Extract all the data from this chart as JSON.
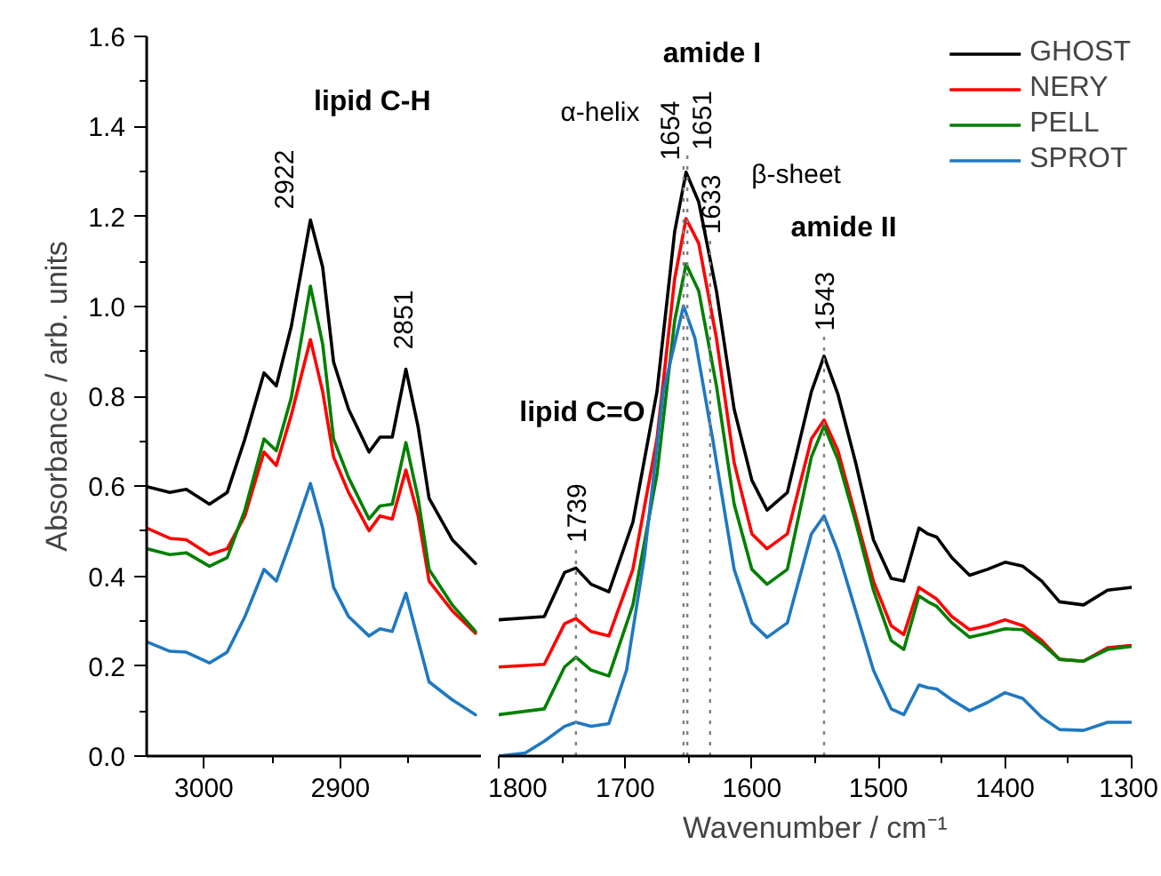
{
  "chart_data": [
    {
      "type": "line",
      "ylabel": "Absorbance / arb. units",
      "xlim": [
        3042,
        2797
      ],
      "ylim": [
        0,
        1.6
      ],
      "xticks": [
        3000,
        2900,
        {
          "value": 2950,
          "label": null
        },
        {
          "value": 2850,
          "label": null
        }
      ],
      "yticks": [
        {
          "value": 0,
          "label": "0.0"
        },
        0.2,
        0.4,
        0.6,
        0.8,
        {
          "value": 1,
          "label": "1.0"
        },
        1.2,
        1.4,
        1.6,
        {
          "value": 0.1,
          "label": null
        },
        {
          "value": 0.3,
          "label": null
        },
        {
          "value": 0.5,
          "label": null
        },
        {
          "value": 0.7,
          "label": null
        },
        {
          "value": 0.9,
          "label": null
        },
        {
          "value": 1.1,
          "label": null
        },
        {
          "value": 1.3,
          "label": null
        },
        {
          "value": 1.5,
          "label": null
        }
      ],
      "x": [
        3042,
        3025,
        3013,
        2996,
        2983,
        2970,
        2956,
        2947,
        2936,
        2922,
        2913,
        2905,
        2894,
        2879,
        2871,
        2862,
        2852,
        2843,
        2835,
        2818,
        2801
      ],
      "series": [
        {
          "color": "#000000",
          "values": [
            0.599,
            0.586,
            0.593,
            0.56,
            0.586,
            0.705,
            0.852,
            0.823,
            0.955,
            1.192,
            1.087,
            0.876,
            0.771,
            0.676,
            0.709,
            0.709,
            0.86,
            0.731,
            0.573,
            0.481,
            0.428
          ]
        },
        {
          "color": "#ff0000",
          "values": [
            0.507,
            0.484,
            0.481,
            0.448,
            0.461,
            0.534,
            0.676,
            0.646,
            0.758,
            0.926,
            0.81,
            0.665,
            0.586,
            0.501,
            0.534,
            0.527,
            0.636,
            0.534,
            0.389,
            0.323,
            0.273
          ]
        },
        {
          "color": "#008000",
          "values": [
            0.461,
            0.448,
            0.452,
            0.422,
            0.441,
            0.547,
            0.705,
            0.679,
            0.797,
            1.045,
            0.916,
            0.705,
            0.619,
            0.527,
            0.556,
            0.56,
            0.697,
            0.573,
            0.415,
            0.336,
            0.277
          ]
        },
        {
          "color": "#1f78c1",
          "values": [
            0.254,
            0.233,
            0.231,
            0.207,
            0.231,
            0.31,
            0.415,
            0.389,
            0.481,
            0.606,
            0.507,
            0.375,
            0.31,
            0.267,
            0.283,
            0.277,
            0.362,
            0.257,
            0.165,
            0.125,
            0.092
          ]
        }
      ],
      "annotations": [
        "lipid C-H",
        "2922",
        "2851"
      ]
    },
    {
      "type": "line",
      "xlabel": "Wavenumber / cm⁻¹",
      "xlim": [
        1800,
        1300
      ],
      "ylim": [
        0,
        1.6
      ],
      "tick_labels": "x",
      "legend": "top right",
      "xticks": [
        1800,
        1700,
        1600,
        1500,
        1400,
        1300,
        {
          "value": 1750,
          "label": null
        },
        {
          "value": 1650,
          "label": null
        },
        {
          "value": 1550,
          "label": null
        },
        {
          "value": 1450,
          "label": null
        },
        {
          "value": 1350,
          "label": null
        }
      ],
      "x": [
        1800,
        1764,
        1748,
        1739,
        1727,
        1713,
        1694,
        1675,
        1661,
        1652,
        1642,
        1628,
        1614,
        1600,
        1588,
        1572,
        1553,
        1543,
        1532,
        1518,
        1504,
        1490,
        1480,
        1468,
        1461,
        1454,
        1442,
        1428,
        1414,
        1400,
        1386,
        1371,
        1357,
        1338,
        1319,
        1300
      ],
      "series": [
        {
          "name": "GHOST",
          "color": "#000000",
          "values": [
            0.303,
            0.31,
            0.408,
            0.418,
            0.382,
            0.365,
            0.52,
            0.81,
            1.166,
            1.298,
            1.232,
            1.034,
            0.771,
            0.613,
            0.547,
            0.586,
            0.81,
            0.889,
            0.804,
            0.652,
            0.481,
            0.395,
            0.389,
            0.507,
            0.494,
            0.487,
            0.441,
            0.402,
            0.415,
            0.431,
            0.422,
            0.389,
            0.343,
            0.336,
            0.369,
            0.375
          ]
        },
        {
          "name": "NERY",
          "color": "#ff0000",
          "values": [
            0.198,
            0.204,
            0.294,
            0.306,
            0.277,
            0.267,
            0.415,
            0.705,
            1.061,
            1.195,
            1.14,
            0.929,
            0.652,
            0.494,
            0.461,
            0.494,
            0.705,
            0.747,
            0.679,
            0.534,
            0.389,
            0.29,
            0.27,
            0.375,
            0.362,
            0.349,
            0.31,
            0.281,
            0.29,
            0.303,
            0.29,
            0.257,
            0.215,
            0.211,
            0.241,
            0.246
          ]
        },
        {
          "name": "PELL",
          "color": "#008000",
          "values": [
            0.092,
            0.105,
            0.198,
            0.22,
            0.191,
            0.178,
            0.336,
            0.626,
            0.968,
            1.094,
            1.034,
            0.823,
            0.56,
            0.415,
            0.382,
            0.415,
            0.665,
            0.734,
            0.659,
            0.52,
            0.369,
            0.257,
            0.237,
            0.356,
            0.343,
            0.333,
            0.296,
            0.264,
            0.273,
            0.283,
            0.281,
            0.25,
            0.215,
            0.211,
            0.237,
            0.244
          ]
        },
        {
          "name": "SPROT",
          "color": "#1f78c1",
          "x": [
            1800,
            1779,
            1764,
            1748,
            1739,
            1727,
            1713,
            1699,
            1685,
            1670,
            1654,
            1645,
            1631,
            1614,
            1600,
            1588,
            1572,
            1553,
            1543,
            1532,
            1518,
            1504,
            1490,
            1480,
            1468,
            1461,
            1454,
            1442,
            1428,
            1414,
            1400,
            1386,
            1371,
            1357,
            1338,
            1319,
            1300
          ],
          "values": [
            0.0,
            0.007,
            0.033,
            0.066,
            0.075,
            0.066,
            0.072,
            0.191,
            0.441,
            0.81,
            1.001,
            0.929,
            0.705,
            0.415,
            0.296,
            0.264,
            0.296,
            0.494,
            0.534,
            0.455,
            0.323,
            0.191,
            0.105,
            0.092,
            0.158,
            0.152,
            0.149,
            0.125,
            0.101,
            0.119,
            0.141,
            0.128,
            0.086,
            0.059,
            0.057,
            0.075,
            0.075
          ]
        }
      ],
      "ref_lines": [
        {
          "axis": "x",
          "value": 1739,
          "label": "1739",
          "line_style": "dotted",
          "color": "#808080"
        },
        {
          "axis": "x",
          "value": 1654,
          "label": "1654",
          "line_style": "dotted",
          "color": "#808080"
        },
        {
          "axis": "x",
          "value": 1651,
          "label": "1651",
          "line_style": "dotted",
          "color": "#808080"
        },
        {
          "axis": "x",
          "value": 1633,
          "label": "1633",
          "line_style": "dotted",
          "color": "#808080"
        },
        {
          "axis": "x",
          "value": 1543,
          "label": "1543",
          "line_style": "dotted",
          "color": "#808080"
        }
      ],
      "annotations": [
        "amide I",
        "α-helix",
        "β-sheet",
        "amide II",
        "lipid C=O"
      ]
    }
  ]
}
